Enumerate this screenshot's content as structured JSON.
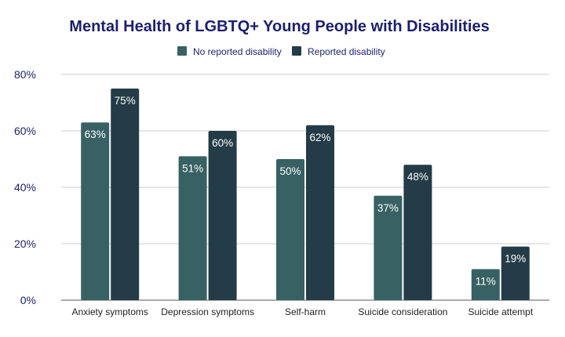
{
  "chart_data": {
    "type": "bar",
    "title": "Mental Health of LGBTQ+ Young People with Disabilities",
    "categories": [
      "Anxiety symptoms",
      "Depression symptoms",
      "Self-harm",
      "Suicide consideration",
      "Suicide attempt"
    ],
    "series": [
      {
        "name": "No reported disability",
        "values": [
          63,
          51,
          50,
          37,
          11
        ],
        "labels": [
          "63%",
          "51%",
          "50%",
          "37%",
          "11%"
        ],
        "color": "#386164"
      },
      {
        "name": "Reported disability",
        "values": [
          75,
          60,
          62,
          48,
          19
        ],
        "labels": [
          "75%",
          "60%",
          "62%",
          "48%",
          "19%"
        ],
        "color": "#233c47"
      }
    ],
    "ylim": [
      0,
      80
    ],
    "yticks": [
      0,
      20,
      40,
      60,
      80
    ],
    "ytick_labels": [
      "0%",
      "20%",
      "40%",
      "60%",
      "80%"
    ],
    "grid": true,
    "legend": "top-center",
    "text_color": "#1b1f6e"
  }
}
